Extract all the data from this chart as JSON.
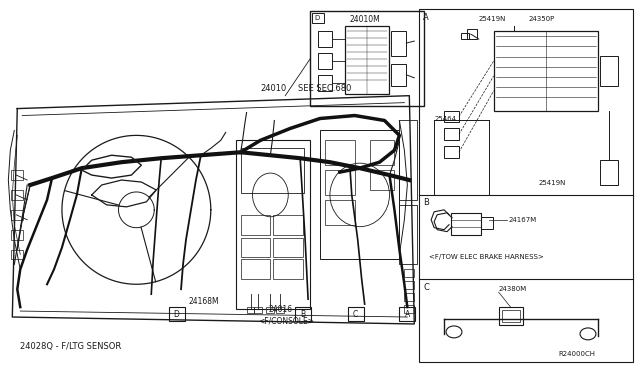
{
  "bg_color": "#ffffff",
  "line_color": "#1a1a1a",
  "diagram_number": "R24000CH",
  "bottom_label": "24028Q - F/LTG SENSOR",
  "see_sec": "SEE SEC.680",
  "part_24010": "24010",
  "part_24010M": "24010M",
  "part_25419N_a": "25419N",
  "part_24350P": "24350P",
  "part_25464": "25464",
  "part_25419N_b": "25419N",
  "part_24167M": "24167M",
  "part_ftow": "<F/TOW ELEC BRAKE HARNESS>",
  "part_24380M": "24380M",
  "part_24168M": "24168M",
  "part_24016": "24016",
  "part_fconsole": "<F/CONSOLE>",
  "label_A": "A",
  "label_B": "B",
  "label_C": "C",
  "label_D": "D"
}
